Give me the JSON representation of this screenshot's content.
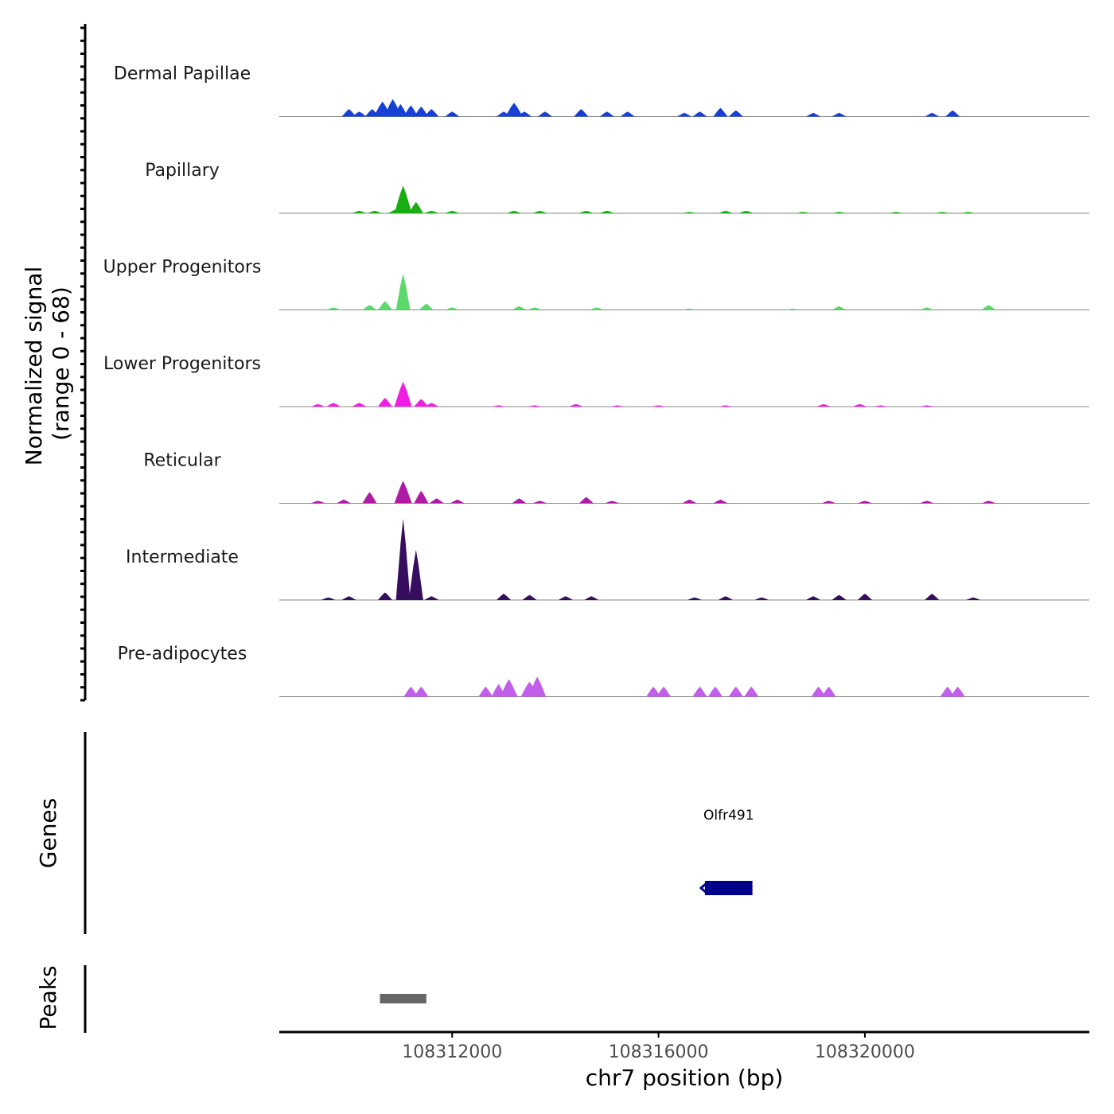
{
  "chart_data": {
    "type": "area",
    "title": "",
    "ylabel": "Normalized signal",
    "ylabel_range": "(range 0 - 68)",
    "ylim": [
      0,
      68
    ],
    "xlabel": "chr7 position (bp)",
    "xlim": [
      108308650,
      108324350
    ],
    "xticks": [
      108312000,
      108316000,
      108320000
    ],
    "xtick_labels": [
      "108312000",
      "108316000",
      "108320000"
    ],
    "tracks": [
      {
        "name": "Dermal Papillae",
        "color": "#1640d6",
        "peaks": [
          [
            108310000,
            6
          ],
          [
            108310200,
            4
          ],
          [
            108310450,
            6
          ],
          [
            108310650,
            12
          ],
          [
            108310850,
            14
          ],
          [
            108311000,
            10
          ],
          [
            108311200,
            9
          ],
          [
            108311400,
            8
          ],
          [
            108311600,
            6
          ],
          [
            108312000,
            4
          ],
          [
            108313000,
            4
          ],
          [
            108313200,
            11
          ],
          [
            108313400,
            4
          ],
          [
            108313800,
            4
          ],
          [
            108314500,
            6
          ],
          [
            108315000,
            4
          ],
          [
            108315400,
            4
          ],
          [
            108316500,
            3
          ],
          [
            108316800,
            4
          ],
          [
            108317200,
            7
          ],
          [
            108317500,
            5
          ],
          [
            108319000,
            3
          ],
          [
            108319500,
            3
          ],
          [
            108321300,
            3
          ],
          [
            108321700,
            5
          ]
        ]
      },
      {
        "name": "Papillary",
        "color": "#19ad14",
        "peaks": [
          [
            108310200,
            2
          ],
          [
            108310500,
            2
          ],
          [
            108310900,
            3
          ],
          [
            108311050,
            22
          ],
          [
            108311300,
            9
          ],
          [
            108311600,
            2
          ],
          [
            108312000,
            2
          ],
          [
            108313200,
            2
          ],
          [
            108313700,
            2
          ],
          [
            108314600,
            2
          ],
          [
            108315000,
            2
          ],
          [
            108316600,
            1
          ],
          [
            108317300,
            2
          ],
          [
            108317700,
            2
          ],
          [
            108318800,
            1
          ],
          [
            108319500,
            1
          ],
          [
            108320600,
            1
          ],
          [
            108321500,
            1
          ],
          [
            108322000,
            1
          ]
        ]
      },
      {
        "name": "Upper Progenitors",
        "color": "#5dd96c",
        "peaks": [
          [
            108309700,
            2
          ],
          [
            108310400,
            4
          ],
          [
            108310700,
            7
          ],
          [
            108311050,
            29
          ],
          [
            108311500,
            5
          ],
          [
            108312000,
            2
          ],
          [
            108313300,
            3
          ],
          [
            108313600,
            2
          ],
          [
            108314800,
            2
          ],
          [
            108316600,
            1
          ],
          [
            108318600,
            1
          ],
          [
            108319500,
            3
          ],
          [
            108321200,
            2
          ],
          [
            108322400,
            4
          ]
        ]
      },
      {
        "name": "Lower Progenitors",
        "color": "#f01ee3",
        "peaks": [
          [
            108309400,
            2
          ],
          [
            108309700,
            3
          ],
          [
            108310200,
            3
          ],
          [
            108310700,
            7
          ],
          [
            108311050,
            20
          ],
          [
            108311400,
            6
          ],
          [
            108311600,
            3
          ],
          [
            108312900,
            1
          ],
          [
            108313600,
            1
          ],
          [
            108314400,
            2
          ],
          [
            108315200,
            1
          ],
          [
            108316000,
            1
          ],
          [
            108317300,
            1
          ],
          [
            108319200,
            2
          ],
          [
            108319900,
            2
          ],
          [
            108320300,
            1
          ],
          [
            108321200,
            1
          ]
        ]
      },
      {
        "name": "Reticular",
        "color": "#b01ba6",
        "peaks": [
          [
            108309400,
            2
          ],
          [
            108309900,
            3
          ],
          [
            108310400,
            9
          ],
          [
            108311050,
            18
          ],
          [
            108311400,
            10
          ],
          [
            108311700,
            4
          ],
          [
            108312100,
            3
          ],
          [
            108313300,
            4
          ],
          [
            108313700,
            2
          ],
          [
            108314600,
            5
          ],
          [
            108315100,
            2
          ],
          [
            108316600,
            3
          ],
          [
            108317200,
            3
          ],
          [
            108319300,
            2
          ],
          [
            108320000,
            2
          ],
          [
            108321200,
            2
          ],
          [
            108322400,
            2
          ]
        ]
      },
      {
        "name": "Intermediate",
        "color": "#370d5f",
        "peaks": [
          [
            108309600,
            2
          ],
          [
            108310000,
            3
          ],
          [
            108310700,
            6
          ],
          [
            108311050,
            65
          ],
          [
            108311300,
            40
          ],
          [
            108311600,
            3
          ],
          [
            108313000,
            5
          ],
          [
            108313500,
            4
          ],
          [
            108314200,
            3
          ],
          [
            108314700,
            3
          ],
          [
            108316700,
            2
          ],
          [
            108317300,
            3
          ],
          [
            108318000,
            2
          ],
          [
            108319000,
            3
          ],
          [
            108319500,
            4
          ],
          [
            108320000,
            5
          ],
          [
            108321300,
            5
          ],
          [
            108322100,
            2
          ]
        ]
      },
      {
        "name": "Pre-adipocytes",
        "color": "#c35dec",
        "peaks": [
          [
            108311200,
            8
          ],
          [
            108311400,
            8
          ],
          [
            108312650,
            8
          ],
          [
            108312900,
            10
          ],
          [
            108313100,
            14
          ],
          [
            108313500,
            12
          ],
          [
            108313650,
            16
          ],
          [
            108315900,
            8
          ],
          [
            108316100,
            8
          ],
          [
            108316800,
            8
          ],
          [
            108317100,
            8
          ],
          [
            108317500,
            8
          ],
          [
            108317800,
            8
          ],
          [
            108319100,
            8
          ],
          [
            108319300,
            8
          ],
          [
            108321600,
            8
          ],
          [
            108321800,
            8
          ]
        ]
      }
    ],
    "genes_label": "Genes",
    "genes": [
      {
        "name": "Olfr491",
        "start": 108316900,
        "end": 108317820,
        "strand": "-",
        "color": "#00008b"
      }
    ],
    "peaks_label": "Peaks",
    "peak_regions": [
      {
        "start": 108310600,
        "end": 108311500,
        "color": "#666666"
      }
    ]
  }
}
